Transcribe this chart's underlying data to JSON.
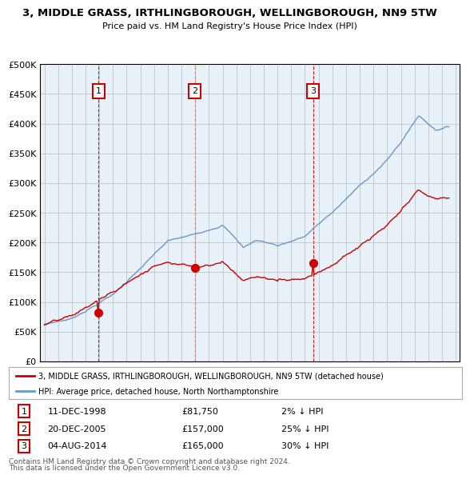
{
  "title": "3, MIDDLE GRASS, IRTHLINGBOROUGH, WELLINGBOROUGH, NN9 5TW",
  "subtitle": "Price paid vs. HM Land Registry's House Price Index (HPI)",
  "legend_line1": "3, MIDDLE GRASS, IRTHLINGBOROUGH, WELLINGBOROUGH, NN9 5TW (detached house)",
  "legend_line2": "HPI: Average price, detached house, North Northamptonshire",
  "footer1": "Contains HM Land Registry data © Crown copyright and database right 2024.",
  "footer2": "This data is licensed under the Open Government Licence v3.0.",
  "transactions": [
    {
      "num": "1",
      "date": "11-DEC-1998",
      "price": "£81,750",
      "hpi": "2% ↓ HPI"
    },
    {
      "num": "2",
      "date": "20-DEC-2005",
      "price": "£157,000",
      "hpi": "25% ↓ HPI"
    },
    {
      "num": "3",
      "date": "04-AUG-2014",
      "price": "£165,000",
      "hpi": "30% ↓ HPI"
    }
  ],
  "transaction_dates": [
    1998.95,
    2005.97,
    2014.59
  ],
  "transaction_prices": [
    81750,
    157000,
    165000
  ],
  "hpi_color": "#6699CC",
  "price_color": "#CC0000",
  "chart_bg": "#E8F0F8",
  "background_color": "#ffffff",
  "grid_color": "#bbbbbb",
  "ylim": [
    0,
    500000
  ],
  "yticks": [
    0,
    50000,
    100000,
    150000,
    200000,
    250000,
    300000,
    350000,
    400000,
    450000,
    500000
  ],
  "xlim": [
    1994.7,
    2025.3
  ]
}
